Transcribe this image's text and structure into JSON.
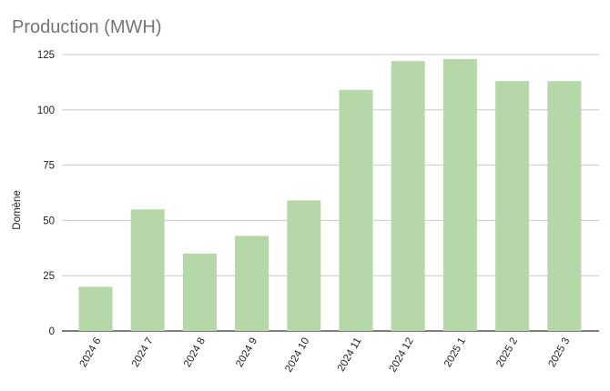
{
  "chart_data": {
    "type": "bar",
    "title": "Production (MWH)",
    "xlabel": "",
    "ylabel": "Domène",
    "categories": [
      "2024 6",
      "2024 7",
      "2024 8",
      "2024 9",
      "2024 10",
      "2024 11",
      "2024 12",
      "2025 1",
      "2025 2",
      "2025 3"
    ],
    "values": [
      20,
      55,
      35,
      43,
      59,
      109,
      122,
      123,
      113,
      113
    ],
    "ylim": [
      0,
      125
    ],
    "yticks": [
      0,
      25,
      50,
      75,
      100,
      125
    ],
    "grid": true,
    "legend": "none",
    "colors": {
      "bar": "#b6d7a8",
      "grid": "#cccccc",
      "baseline": "#333333"
    }
  }
}
